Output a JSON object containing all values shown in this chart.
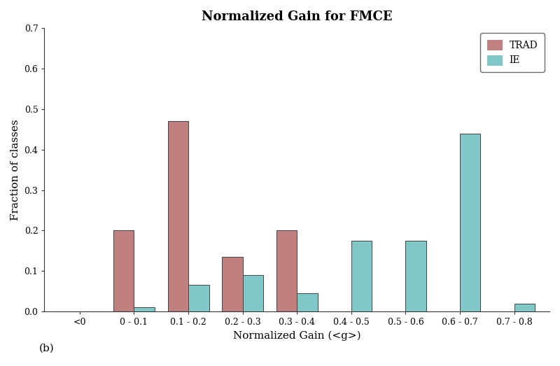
{
  "title": "Normalized Gain for FMCE",
  "xlabel": "Normalized Gain (<g>)",
  "ylabel": "Fraction of classes",
  "categories": [
    "<0",
    "0 - 0.1",
    "0.1 - 0.2",
    "0.2 - 0.3",
    "0.3 - 0.4",
    "0.4 - 0.5",
    "0.5 - 0.6",
    "0.6 - 0.7",
    "0.7 - 0.8"
  ],
  "trad_values": [
    0.0,
    0.2,
    0.47,
    0.135,
    0.2,
    0.0,
    0.0,
    0.0,
    0.0
  ],
  "ie_values": [
    0.0,
    0.01,
    0.065,
    0.09,
    0.045,
    0.175,
    0.175,
    0.44,
    0.02
  ],
  "trad_color": "#c08080",
  "ie_color": "#80c8c8",
  "trad_label": "TRAD",
  "ie_label": "IE",
  "ylim": [
    0,
    0.7
  ],
  "yticks": [
    0.0,
    0.1,
    0.2,
    0.3,
    0.4,
    0.5,
    0.6,
    0.7
  ],
  "title_fontsize": 13,
  "label_fontsize": 11,
  "tick_fontsize": 9,
  "annotation": "(b)",
  "background_color": "#ffffff",
  "bar_width": 0.38
}
